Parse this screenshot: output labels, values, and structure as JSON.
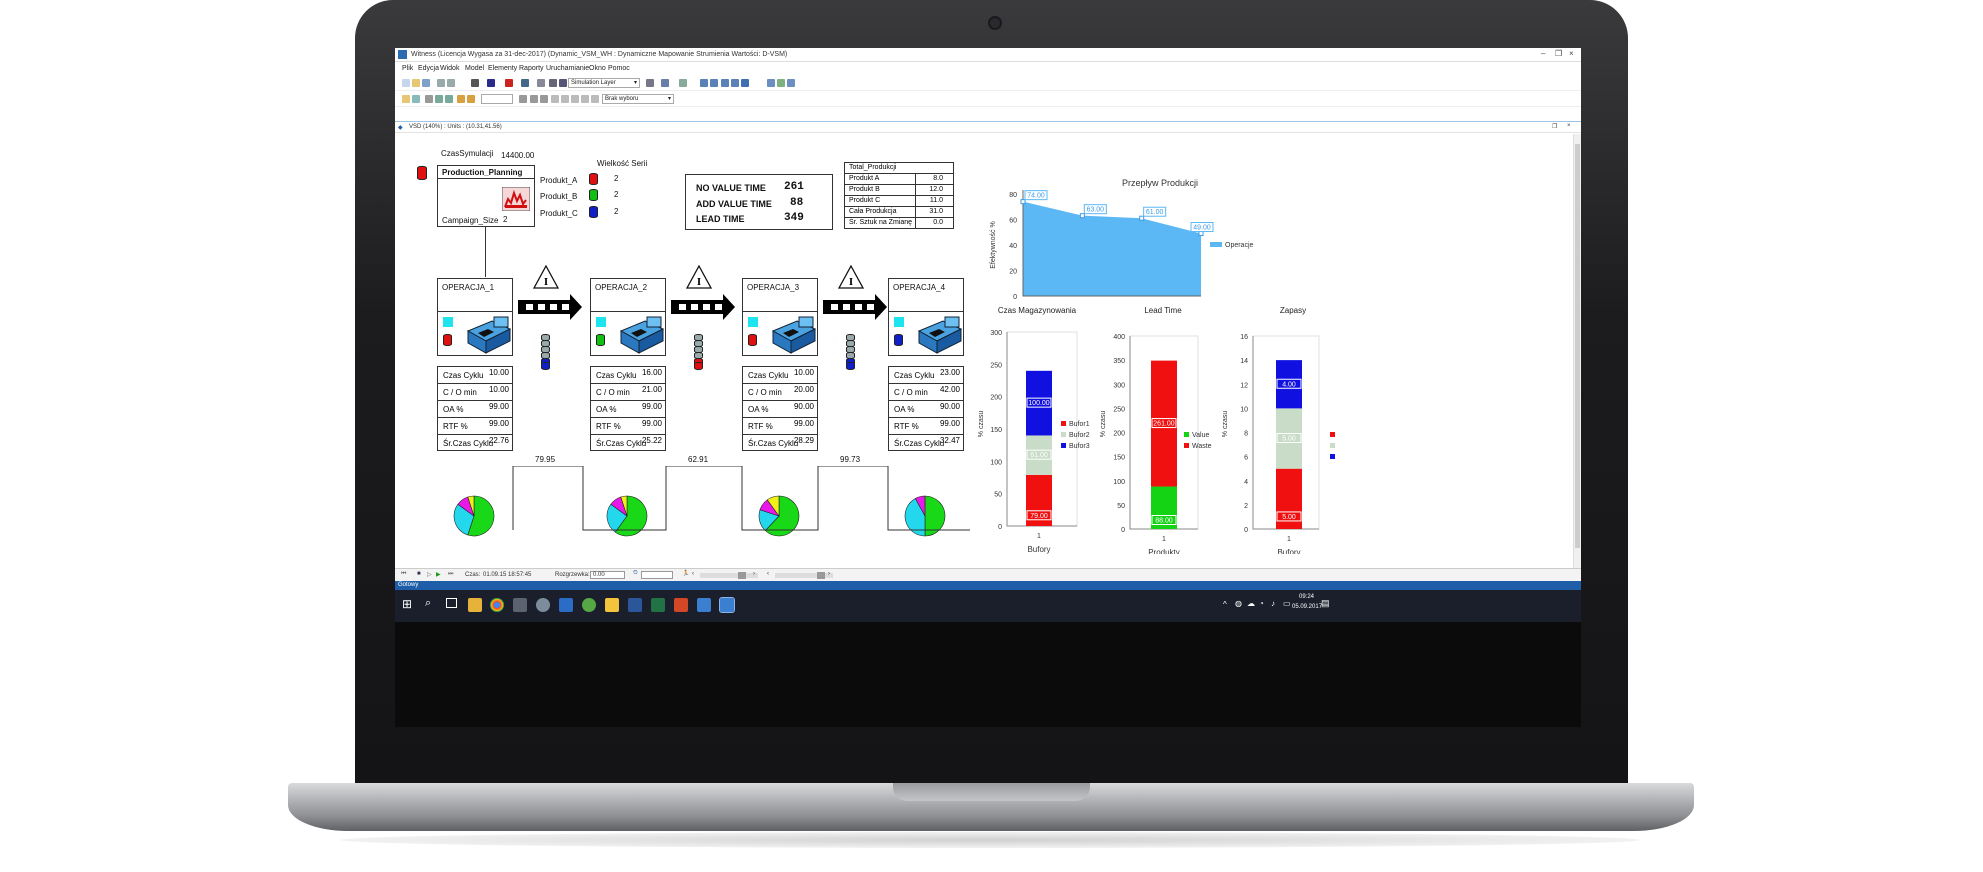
{
  "window": {
    "title": "Witness (Licencja Wygasa za 31-dec-2017) (Dynamic_VSM_WH : Dynamiczne Mapowanie Strumienia Wartości: D-VSM)",
    "minimize": "–",
    "restore": "❐",
    "close": "×"
  },
  "menu": [
    "Plik",
    "Edycja",
    "Widok",
    "Model",
    "Elementy",
    "Raporty",
    "Uruchamianie",
    "Okno",
    "Pomoc"
  ],
  "toolbar": {
    "layer_select": "Simulation Layer",
    "filter_select": "Brak wyboru"
  },
  "document": {
    "title": "VSD (140%) : Units : (10.31,41.56)",
    "restore": "❐",
    "close": "×"
  },
  "sim": {
    "time_label": "CzasSymulacji",
    "time_value": "14400.00",
    "planning_title": "Production_Planning",
    "campaign_label": "Campaign_Size",
    "campaign_value": "2",
    "series_header": "Wielkość Serii",
    "products": [
      {
        "name": "Produkt_A",
        "value": "2",
        "color": "#e01010"
      },
      {
        "name": "Produkt_B",
        "value": "2",
        "color": "#12c012"
      },
      {
        "name": "Produkt_C",
        "value": "2",
        "color": "#1020c8"
      }
    ]
  },
  "times": {
    "nva_label": "NO VALUE TIME",
    "nva_value": "261",
    "va_label": "ADD VALUE TIME",
    "va_value": "88",
    "lead_label": "LEAD  TIME",
    "lead_value": "349"
  },
  "totals": {
    "title": "Total_Produkcji",
    "rows": [
      {
        "label": "Produkt A",
        "value": "8.0"
      },
      {
        "label": "Produkt B",
        "value": "12.0"
      },
      {
        "label": "Produkt C",
        "value": "11.0"
      },
      {
        "label": "Cała Produkcja",
        "value": "31.0"
      },
      {
        "label": "Śr. Sztuk na Zmianę",
        "value": "0.0"
      }
    ]
  },
  "operations": [
    {
      "name": "OPERACJA_1",
      "cyl": "#e01010",
      "stats": [
        "10.00",
        "10.00",
        "99.00",
        "99.00",
        "22.76"
      ],
      "pie": [
        0.55,
        0.3,
        0.1,
        0.05
      ]
    },
    {
      "name": "OPERACJA_2",
      "cyl": "#12c012",
      "stats": [
        "16.00",
        "21.00",
        "99.00",
        "99.00",
        "25.22"
      ],
      "pie": [
        0.6,
        0.25,
        0.1,
        0.05
      ]
    },
    {
      "name": "OPERACJA_3",
      "cyl": "#e01010",
      "stats": [
        "10.00",
        "20.00",
        "90.00",
        "99.00",
        "28.29"
      ],
      "pie": [
        0.62,
        0.18,
        0.1,
        0.1
      ]
    },
    {
      "name": "OPERACJA_4",
      "cyl": "#1020c8",
      "stats": [
        "23.00",
        "42.00",
        "90.00",
        "99.00",
        "32.47"
      ],
      "pie": [
        0.5,
        0.42,
        0.08,
        0.0
      ]
    }
  ],
  "stat_labels": [
    "Czas Cyklu",
    "C / O min",
    "OA %",
    "RTF %",
    "Śr.Czas Cyklu"
  ],
  "buffer_values": [
    "79.95",
    "62.91",
    "99.73"
  ],
  "inventory_symbol": "I",
  "status": {
    "time_label": "Czas:",
    "time_value": "01.09.15 18:57:45",
    "warmup_label": "Rozgrzewka:",
    "warmup_value": "0.00",
    "ready": "Gotowy"
  },
  "clock": {
    "time": "09:24",
    "date": "05.09.2017"
  },
  "chart_data": [
    {
      "type": "area",
      "title": "Przepływ Produkcji",
      "ylabel": "Efektywność %",
      "x": [
        "1",
        "2",
        "3",
        "4"
      ],
      "series": [
        {
          "name": "Operacje",
          "values": [
            74.0,
            63.0,
            61.0,
            49.0
          ]
        }
      ],
      "ylim": [
        0,
        80
      ],
      "yticks": [
        "0",
        "20",
        "40",
        "60",
        "80"
      ],
      "data_labels": [
        "74.00",
        "63.00",
        "61.00",
        "49.00"
      ],
      "legend": "right",
      "color": "#5bb8f5"
    },
    {
      "type": "bar",
      "stacked": true,
      "title": "Czas Magazynowania",
      "xlabel": "Bufory",
      "ylabel": "% czasu",
      "categories": [
        "1"
      ],
      "ylim": [
        0,
        300
      ],
      "yticks": [
        "0",
        "50",
        "100",
        "150",
        "200",
        "250",
        "300"
      ],
      "series": [
        {
          "name": "Bufor1",
          "values": [
            79.0
          ],
          "color": "#f01010"
        },
        {
          "name": "Bufor2",
          "values": [
            61.0
          ],
          "color": "#c8dcc8"
        },
        {
          "name": "Bufor3",
          "values": [
            100.0
          ],
          "color": "#1010e0"
        }
      ],
      "data_labels": [
        "79.00",
        "61.00",
        "100.00"
      ]
    },
    {
      "type": "bar",
      "stacked": true,
      "title": "Lead Time",
      "xlabel": "Produkty",
      "ylabel": "% czasu",
      "categories": [
        "1"
      ],
      "ylim": [
        0,
        400
      ],
      "yticks": [
        "0",
        "50",
        "100",
        "150",
        "200",
        "250",
        "300",
        "350",
        "400"
      ],
      "series": [
        {
          "name": "Value",
          "values": [
            88.0
          ],
          "color": "#14d214"
        },
        {
          "name": "Waste",
          "values": [
            261.0
          ],
          "color": "#f01010"
        }
      ],
      "data_labels": [
        "88.00",
        "261.00"
      ]
    },
    {
      "type": "bar",
      "stacked": true,
      "title": "Zapasy",
      "xlabel": "Bufory",
      "ylabel": "% czasu",
      "categories": [
        "1"
      ],
      "ylim": [
        0,
        16
      ],
      "yticks": [
        "0",
        "2",
        "4",
        "6",
        "8",
        "10",
        "12",
        "14",
        "16"
      ],
      "series": [
        {
          "name": "",
          "values": [
            5.0
          ],
          "color": "#f01010"
        },
        {
          "name": "",
          "values": [
            5.0
          ],
          "color": "#c8dcc8"
        },
        {
          "name": "",
          "values": [
            4.0
          ],
          "color": "#1010e0"
        }
      ],
      "data_labels": [
        "5.00",
        "5.00",
        "4.00"
      ]
    }
  ]
}
